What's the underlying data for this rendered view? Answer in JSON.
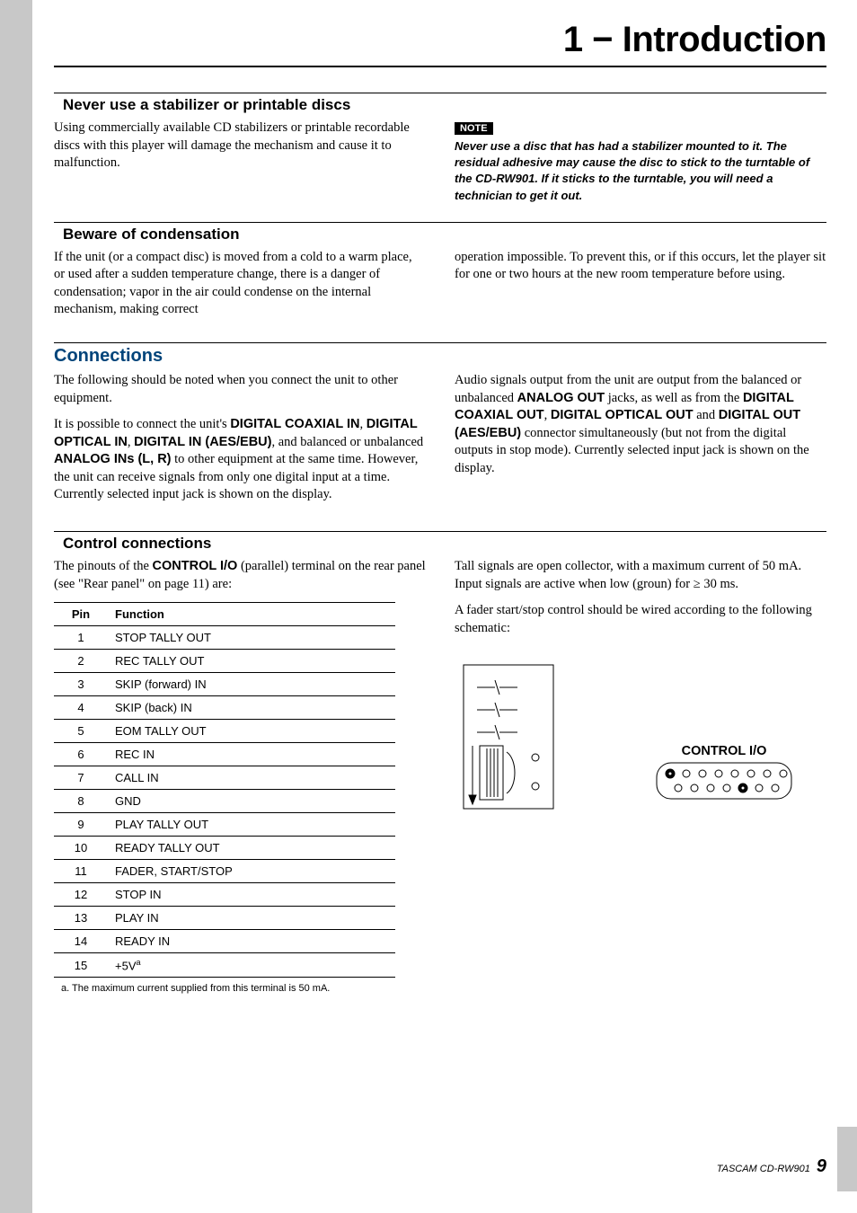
{
  "chapter": {
    "title": "1 − Introduction"
  },
  "sections": {
    "stabilizer": {
      "heading": "Never use a stabilizer or printable discs",
      "para1": "Using commercially available CD stabilizers or printable recordable discs with this player will damage the mechanism and cause it to malfunction.",
      "note_label": "NOTE",
      "note_text": "Never use a disc that has had a stabilizer mounted to it. The residual adhesive may cause the disc to stick to the turntable of the CD-RW901. If it sticks to the turntable, you will need a technician to get it out."
    },
    "condensation": {
      "heading": "Beware of condensation",
      "para_left": "If the unit (or a compact disc) is moved from a cold to a warm place, or used after a sudden temperature change, there is a danger of condensation; vapor in the air could condense on the internal mechanism, making correct",
      "para_right": "operation impossible. To prevent this, or if this occurs, let the player sit for one or two hours at the new room temperature before using."
    },
    "connections": {
      "heading": "Connections",
      "para_left_1": "The following should be noted when you connect the unit to other equipment.",
      "para_left_2a": "It is possible to connect the unit's ",
      "bold1": "DIGITAL COAXIAL IN",
      "sep1": ", ",
      "bold2": "DIGITAL OPTICAL IN",
      "sep2": ", ",
      "bold3": "DIGITAL IN (AES/EBU)",
      "sep3": ", and balanced or unbalanced ",
      "bold4": "ANALOG INs (L, R)",
      "para_left_2b": " to other equipment at the same time. However, the unit can receive signals from only one digital input at a time. Currently selected input jack is shown on the display.",
      "para_right_a": "Audio signals output from the unit are output from the balanced or unbalanced ",
      "r_bold1": "ANALOG OUT",
      "r_sep1": " jacks, as well as from the ",
      "r_bold2": "DIGITAL COAXIAL OUT",
      "r_sep2": ", ",
      "r_bold3": "DIGITAL OPTICAL OUT",
      "r_sep3": " and ",
      "r_bold4": "DIGITAL OUT (AES/EBU)",
      "para_right_b": " connector simultaneously (but not from the digital outputs in stop mode). Currently selected input jack is shown on the display."
    },
    "control": {
      "heading": "Control connections",
      "para_left_a": "The pinouts of the ",
      "bold_ctl": "CONTROL I/O",
      "para_left_b": " (parallel) terminal on the rear panel (see \"Rear panel\" on page 11) are:",
      "table": {
        "col1": "Pin",
        "col2": "Function",
        "rows": [
          {
            "pin": "1",
            "fn": "STOP TALLY OUT"
          },
          {
            "pin": "2",
            "fn": "REC TALLY OUT"
          },
          {
            "pin": "3",
            "fn": "SKIP (forward) IN"
          },
          {
            "pin": "4",
            "fn": "SKIP (back) IN"
          },
          {
            "pin": "5",
            "fn": "EOM TALLY OUT"
          },
          {
            "pin": "6",
            "fn": "REC IN"
          },
          {
            "pin": "7",
            "fn": "CALL IN"
          },
          {
            "pin": "8",
            "fn": "GND"
          },
          {
            "pin": "9",
            "fn": "PLAY TALLY OUT"
          },
          {
            "pin": "10",
            "fn": "READY TALLY OUT"
          },
          {
            "pin": "11",
            "fn": "FADER, START/STOP"
          },
          {
            "pin": "12",
            "fn": "STOP IN"
          },
          {
            "pin": "13",
            "fn": "PLAY IN"
          },
          {
            "pin": "14",
            "fn": "READY IN"
          },
          {
            "pin": "15",
            "fn": "+5V",
            "sup": "a"
          }
        ],
        "footnote": "a. The maximum current supplied from this terminal is 50 mA."
      },
      "para_right_1": "Tall signals are open collector, with a maximum current of 50 mA. Input signals are active when low (groun) for ≥ 30 ms.",
      "para_right_2": "A fader start/stop control should be wired according to the following schematic:",
      "schematic": {
        "label": "CONTROL I/O",
        "stroke": "#000000",
        "fill_none": "none"
      }
    }
  },
  "footer": {
    "product": "TASCAM  CD-RW901",
    "page": "9"
  }
}
